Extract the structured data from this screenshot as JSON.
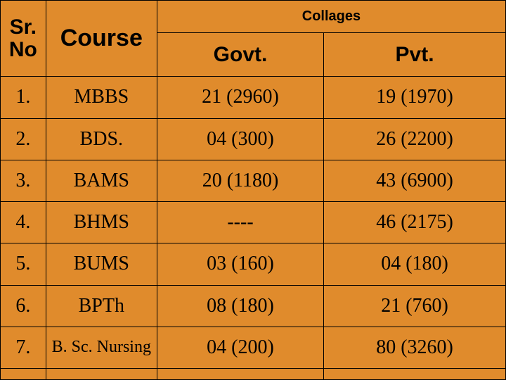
{
  "table": {
    "type": "table",
    "background_color": "#e08b2c",
    "border_color": "#000000",
    "text_color": "#000000",
    "header": {
      "srno": "Sr. No",
      "course": "Course",
      "collages": "Collages",
      "govt": "Govt.",
      "pvt": "Pvt.",
      "font_family": "Arial",
      "font_weight": 700,
      "srno_fontsize": 30,
      "course_fontsize": 34,
      "collages_fontsize": 20,
      "sub_fontsize": 30
    },
    "body_font": {
      "family": "Times New Roman",
      "size": 28
    },
    "column_widths_pct": [
      9,
      22,
      33,
      36
    ],
    "columns": [
      "Sr. No",
      "Course",
      "Govt.",
      "Pvt."
    ],
    "rows": [
      {
        "srno": "1.",
        "course": "MBBS",
        "govt": "21 (2960)",
        "pvt": "19 (1970)"
      },
      {
        "srno": "2.",
        "course": "BDS.",
        "govt": "04 (300)",
        "pvt": "26 (2200)"
      },
      {
        "srno": "3.",
        "course": "BAMS",
        "govt": "20 (1180)",
        "pvt": "43 (6900)"
      },
      {
        "srno": "4.",
        "course": "BHMS",
        "govt": "----",
        "pvt": "46 (2175)"
      },
      {
        "srno": "5.",
        "course": "BUMS",
        "govt": "03 (160)",
        "pvt": "04 (180)"
      },
      {
        "srno": "6.",
        "course": "BPTh",
        "govt": "08 (180)",
        "pvt": "21 (760)"
      },
      {
        "srno": "7.",
        "course": "B. Sc. Nursing",
        "govt": "04 (200)",
        "pvt": "80 (3260)"
      }
    ]
  }
}
